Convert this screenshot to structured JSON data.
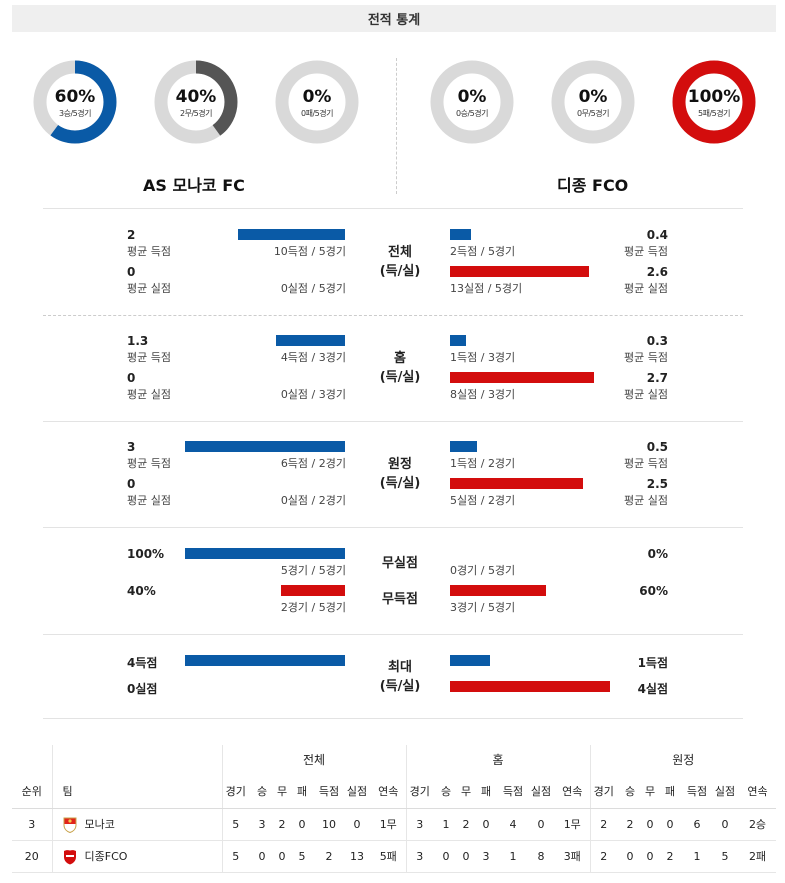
{
  "header": {
    "title": "전적 통계"
  },
  "colors": {
    "blue": "#0a5aa6",
    "red": "#d30d0d",
    "gray": "#d9d9d9",
    "dark_gray": "#555555"
  },
  "donuts": [
    {
      "pct": "60%",
      "sub": "3승/5경기",
      "value": 0.6,
      "color": "#0a5aa6"
    },
    {
      "pct": "40%",
      "sub": "2무/5경기",
      "value": 0.4,
      "color": "#555555"
    },
    {
      "pct": "0%",
      "sub": "0패/5경기",
      "value": 0,
      "color": "#555555"
    },
    {
      "pct": "0%",
      "sub": "0승/5경기",
      "value": 0,
      "color": "#0a5aa6"
    },
    {
      "pct": "0%",
      "sub": "0무/5경기",
      "value": 0,
      "color": "#555555"
    },
    {
      "pct": "100%",
      "sub": "5패/5경기",
      "value": 1.0,
      "color": "#d30d0d"
    }
  ],
  "teams": {
    "home": "AS 모나코 FC",
    "away": "디종 FCO"
  },
  "sections": [
    {
      "label1": "전체",
      "label2": "(득/실)",
      "left_top_val": "2",
      "left_top_lbl": "평균 득점",
      "left_top_detail": "10득점 / 5경기",
      "left_top_bar": 2,
      "left_bot_val": "0",
      "left_bot_lbl": "평균 실점",
      "left_bot_detail": "0실점 / 5경기",
      "left_bot_bar": 0,
      "right_top_val": "0.4",
      "right_top_lbl": "평균 득점",
      "right_top_detail": "2득점 / 5경기",
      "right_top_bar": 0.4,
      "right_bot_val": "2.6",
      "right_bot_lbl": "평균 실점",
      "right_bot_detail": "13실점 / 5경기",
      "right_bot_bar": 2.6
    },
    {
      "label1": "홈",
      "label2": "(득/실)",
      "left_top_val": "1.3",
      "left_top_lbl": "평균 득점",
      "left_top_detail": "4득점 / 3경기",
      "left_top_bar": 1.3,
      "left_bot_val": "0",
      "left_bot_lbl": "평균 실점",
      "left_bot_detail": "0실점 / 3경기",
      "left_bot_bar": 0,
      "right_top_val": "0.3",
      "right_top_lbl": "평균 득점",
      "right_top_detail": "1득점 / 3경기",
      "right_top_bar": 0.3,
      "right_bot_val": "2.7",
      "right_bot_lbl": "평균 실점",
      "right_bot_detail": "8실점 / 3경기",
      "right_bot_bar": 2.7
    },
    {
      "label1": "원정",
      "label2": "(득/실)",
      "left_top_val": "3",
      "left_top_lbl": "평균 득점",
      "left_top_detail": "6득점 / 2경기",
      "left_top_bar": 3,
      "left_bot_val": "0",
      "left_bot_lbl": "평균 실점",
      "left_bot_detail": "0실점 / 2경기",
      "left_bot_bar": 0,
      "right_top_val": "0.5",
      "right_top_lbl": "평균 득점",
      "right_top_detail": "1득점 / 2경기",
      "right_top_bar": 0.5,
      "right_bot_val": "2.5",
      "right_bot_lbl": "평균 실점",
      "right_bot_detail": "5실점 / 2경기",
      "right_bot_bar": 2.5
    }
  ],
  "clean": {
    "label_a": "무실점",
    "label_b": "무득점",
    "left_a_val": "100%",
    "left_a_detail": "5경기 / 5경기",
    "left_a_bar": 1.0,
    "left_b_val": "40%",
    "left_b_detail": "2경기 / 5경기",
    "left_b_bar": 0.4,
    "right_a_val": "0%",
    "right_a_detail": "0경기 / 5경기",
    "right_a_bar": 0,
    "right_b_val": "60%",
    "right_b_detail": "3경기 / 5경기",
    "right_b_bar": 0.6
  },
  "max": {
    "label1": "최대",
    "label2": "(득/실)",
    "left_top": "4득점",
    "left_top_bar": 4,
    "left_bot": "0실점",
    "left_bot_bar": 0,
    "right_top": "1득점",
    "right_top_bar": 1,
    "right_bot": "4실점",
    "right_bot_bar": 4
  },
  "standings": {
    "groups": [
      "전체",
      "홈",
      "원정"
    ],
    "col_rank": "순위",
    "col_team": "팀",
    "cols": [
      "경기",
      "승",
      "무",
      "패",
      "득점",
      "실점",
      "연속"
    ],
    "rows": [
      {
        "rank": "3",
        "team": "모나코",
        "all": [
          "5",
          "3",
          "2",
          "0",
          "10",
          "0",
          "1무"
        ],
        "home": [
          "3",
          "1",
          "2",
          "0",
          "4",
          "0",
          "1무"
        ],
        "away": [
          "2",
          "2",
          "0",
          "0",
          "6",
          "0",
          "2승"
        ]
      },
      {
        "rank": "20",
        "team": "디종FCO",
        "all": [
          "5",
          "0",
          "0",
          "5",
          "2",
          "13",
          "5패"
        ],
        "home": [
          "3",
          "0",
          "0",
          "3",
          "1",
          "8",
          "3패"
        ],
        "away": [
          "2",
          "0",
          "0",
          "2",
          "1",
          "5",
          "2패"
        ]
      }
    ]
  }
}
